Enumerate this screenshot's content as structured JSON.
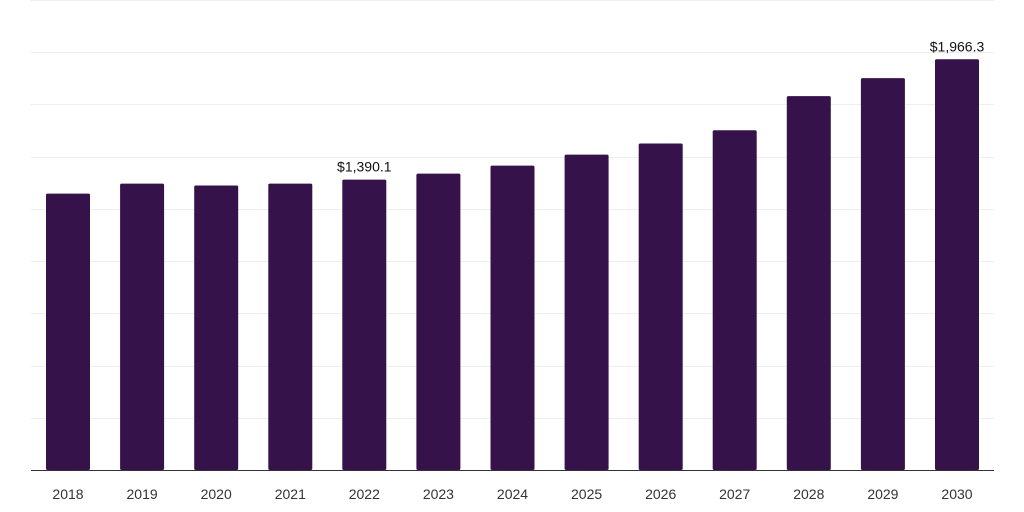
{
  "chart_data": {
    "type": "bar",
    "title": "",
    "xlabel": "",
    "ylabel": "",
    "grid": true,
    "bar_color": "#36124b",
    "ylim": [
      0,
      2250
    ],
    "categories": [
      "2018",
      "2019",
      "2020",
      "2021",
      "2022",
      "2023",
      "2024",
      "2025",
      "2026",
      "2027",
      "2028",
      "2029",
      "2030"
    ],
    "values": [
      1323,
      1371,
      1362,
      1371,
      1390.1,
      1419,
      1457,
      1510,
      1563,
      1626,
      1790,
      1876,
      1966.3
    ],
    "data_labels": [
      {
        "index": 4,
        "text": "$1,390.1"
      },
      {
        "index": 12,
        "text": "$1,966.3"
      }
    ]
  }
}
